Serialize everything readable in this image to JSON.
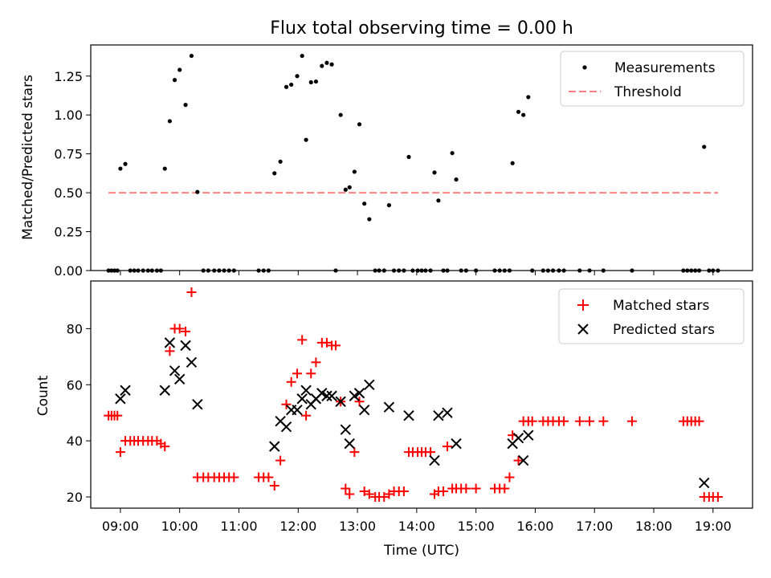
{
  "chart_data": [
    {
      "type": "scatter",
      "title": "Flux total observing time = 0.00 h",
      "ylabel": "Matched/Predicted stars",
      "xlabel": "",
      "xlim": [
        "08:30",
        "19:40"
      ],
      "ylim": [
        0,
        1.45
      ],
      "x_tick_labels": [],
      "y_ticks": [
        0,
        0.25,
        0.5,
        0.75,
        1.0,
        1.25
      ],
      "y_tick_labels": [
        "0.00",
        "0.25",
        "0.50",
        "0.75",
        "1.00",
        "1.25"
      ],
      "legend_position": "top-right",
      "grid": false,
      "series": [
        {
          "name": "Measurements",
          "kind": "scatter",
          "marker": "dot",
          "color": "#000000",
          "points": [
            [
              "08:48",
              0
            ],
            [
              "08:51",
              0
            ],
            [
              "08:54",
              0
            ],
            [
              "08:57",
              0
            ],
            [
              "09:00",
              0.655
            ],
            [
              "09:05",
              0.685
            ],
            [
              "09:10",
              0
            ],
            [
              "09:14",
              0
            ],
            [
              "09:18",
              0
            ],
            [
              "09:23",
              0
            ],
            [
              "09:28",
              0
            ],
            [
              "09:32",
              0
            ],
            [
              "09:37",
              0
            ],
            [
              "09:41",
              0
            ],
            [
              "09:45",
              0.655
            ],
            [
              "09:50",
              0.96
            ],
            [
              "09:55",
              1.225
            ],
            [
              "10:00",
              1.29
            ],
            [
              "10:06",
              1.065
            ],
            [
              "10:12",
              1.38
            ],
            [
              "10:18",
              0.505
            ],
            [
              "10:24",
              0
            ],
            [
              "10:29",
              0
            ],
            [
              "10:35",
              0
            ],
            [
              "10:40",
              0
            ],
            [
              "10:45",
              0
            ],
            [
              "10:50",
              0
            ],
            [
              "10:55",
              0
            ],
            [
              "11:20",
              0
            ],
            [
              "11:25",
              0
            ],
            [
              "11:30",
              0
            ],
            [
              "11:36",
              0.625
            ],
            [
              "11:42",
              0.7
            ],
            [
              "11:48",
              1.18
            ],
            [
              "11:53",
              1.195
            ],
            [
              "11:59",
              1.25
            ],
            [
              "12:04",
              1.38
            ],
            [
              "12:08",
              0.84
            ],
            [
              "12:13",
              1.21
            ],
            [
              "12:18",
              1.215
            ],
            [
              "12:24",
              1.315
            ],
            [
              "12:29",
              1.335
            ],
            [
              "12:34",
              1.325
            ],
            [
              "12:38",
              0
            ],
            [
              "12:43",
              1.0
            ],
            [
              "12:48",
              0.52
            ],
            [
              "12:52",
              0.535
            ],
            [
              "12:57",
              0.635
            ],
            [
              "13:02",
              0.94
            ],
            [
              "13:07",
              0.43
            ],
            [
              "13:12",
              0.33
            ],
            [
              "13:18",
              0
            ],
            [
              "13:22",
              0
            ],
            [
              "13:27",
              0
            ],
            [
              "13:32",
              0.42
            ],
            [
              "13:37",
              0
            ],
            [
              "13:42",
              0
            ],
            [
              "13:47",
              0
            ],
            [
              "13:52",
              0.73
            ],
            [
              "13:56",
              0
            ],
            [
              "14:01",
              0
            ],
            [
              "14:05",
              0
            ],
            [
              "14:09",
              0
            ],
            [
              "14:14",
              0
            ],
            [
              "14:18",
              0.63
            ],
            [
              "14:22",
              0.45
            ],
            [
              "14:27",
              0
            ],
            [
              "14:31",
              0
            ],
            [
              "14:36",
              0.755
            ],
            [
              "14:40",
              0.585
            ],
            [
              "14:45",
              0
            ],
            [
              "14:50",
              0
            ],
            [
              "15:00",
              0
            ],
            [
              "15:19",
              0
            ],
            [
              "15:24",
              0
            ],
            [
              "15:29",
              0
            ],
            [
              "15:34",
              0
            ],
            [
              "15:37",
              0.69
            ],
            [
              "15:43",
              1.02
            ],
            [
              "15:48",
              1.0
            ],
            [
              "15:53",
              1.115
            ],
            [
              "15:57",
              0
            ],
            [
              "16:08",
              0
            ],
            [
              "16:13",
              0
            ],
            [
              "16:18",
              0
            ],
            [
              "16:24",
              0
            ],
            [
              "16:29",
              0
            ],
            [
              "16:45",
              0
            ],
            [
              "16:55",
              0
            ],
            [
              "17:09",
              0
            ],
            [
              "17:38",
              0
            ],
            [
              "18:30",
              0
            ],
            [
              "18:34",
              0
            ],
            [
              "18:38",
              0
            ],
            [
              "18:42",
              0
            ],
            [
              "18:46",
              0
            ],
            [
              "18:51",
              0.795
            ],
            [
              "18:56",
              0
            ],
            [
              "19:00",
              0
            ],
            [
              "19:05",
              0
            ]
          ]
        },
        {
          "name": "Threshold",
          "kind": "line",
          "style": "dashed",
          "color": "#ff8080",
          "points": [
            [
              "08:48",
              0.5
            ],
            [
              "19:05",
              0.5
            ]
          ]
        }
      ]
    },
    {
      "type": "scatter",
      "title": "",
      "ylabel": "Count",
      "xlabel": "Time (UTC)",
      "xlim": [
        "08:30",
        "19:40"
      ],
      "ylim": [
        16.0,
        97.0
      ],
      "x_ticks": [
        "09:00",
        "10:00",
        "11:00",
        "12:00",
        "13:00",
        "14:00",
        "15:00",
        "16:00",
        "17:00",
        "18:00",
        "19:00"
      ],
      "x_tick_labels": [
        "09:00",
        "10:00",
        "11:00",
        "12:00",
        "13:00",
        "14:00",
        "15:00",
        "16:00",
        "17:00",
        "18:00",
        "19:00"
      ],
      "y_ticks": [
        20,
        40,
        60,
        80
      ],
      "y_tick_labels": [
        "20",
        "40",
        "60",
        "80"
      ],
      "legend_position": "top-right",
      "grid": false,
      "series": [
        {
          "name": "Matched stars",
          "kind": "scatter",
          "marker": "plus",
          "color": "#ff0000",
          "points": [
            [
              "08:48",
              49
            ],
            [
              "08:51",
              49
            ],
            [
              "08:54",
              49
            ],
            [
              "08:57",
              49
            ],
            [
              "09:00",
              36
            ],
            [
              "09:05",
              40
            ],
            [
              "09:10",
              40
            ],
            [
              "09:14",
              40
            ],
            [
              "09:18",
              40
            ],
            [
              "09:23",
              40
            ],
            [
              "09:28",
              40
            ],
            [
              "09:32",
              40
            ],
            [
              "09:37",
              40
            ],
            [
              "09:41",
              39
            ],
            [
              "09:45",
              38
            ],
            [
              "09:50",
              72
            ],
            [
              "09:55",
              80
            ],
            [
              "10:00",
              80
            ],
            [
              "10:06",
              79
            ],
            [
              "10:12",
              93
            ],
            [
              "10:18",
              27
            ],
            [
              "10:24",
              27
            ],
            [
              "10:29",
              27
            ],
            [
              "10:35",
              27
            ],
            [
              "10:40",
              27
            ],
            [
              "10:45",
              27
            ],
            [
              "10:50",
              27
            ],
            [
              "10:55",
              27
            ],
            [
              "11:20",
              27
            ],
            [
              "11:25",
              27
            ],
            [
              "11:30",
              27
            ],
            [
              "11:36",
              24
            ],
            [
              "11:42",
              33
            ],
            [
              "11:48",
              53
            ],
            [
              "11:53",
              61
            ],
            [
              "11:59",
              64
            ],
            [
              "12:04",
              76
            ],
            [
              "12:08",
              49
            ],
            [
              "12:13",
              64
            ],
            [
              "12:18",
              68
            ],
            [
              "12:24",
              75
            ],
            [
              "12:29",
              75
            ],
            [
              "12:34",
              74
            ],
            [
              "12:38",
              74
            ],
            [
              "12:43",
              54
            ],
            [
              "12:48",
              23
            ],
            [
              "12:52",
              21
            ],
            [
              "12:57",
              36
            ],
            [
              "13:02",
              54
            ],
            [
              "13:07",
              22
            ],
            [
              "13:12",
              21
            ],
            [
              "13:18",
              20
            ],
            [
              "13:22",
              20
            ],
            [
              "13:27",
              20
            ],
            [
              "13:32",
              21
            ],
            [
              "13:37",
              22
            ],
            [
              "13:42",
              22
            ],
            [
              "13:47",
              22
            ],
            [
              "13:52",
              36
            ],
            [
              "13:56",
              36
            ],
            [
              "14:01",
              36
            ],
            [
              "14:05",
              36
            ],
            [
              "14:09",
              36
            ],
            [
              "14:14",
              36
            ],
            [
              "14:18",
              21
            ],
            [
              "14:22",
              22
            ],
            [
              "14:27",
              22
            ],
            [
              "14:31",
              38
            ],
            [
              "14:36",
              23
            ],
            [
              "14:40",
              23
            ],
            [
              "14:45",
              23
            ],
            [
              "14:50",
              23
            ],
            [
              "15:00",
              23
            ],
            [
              "15:19",
              23
            ],
            [
              "15:24",
              23
            ],
            [
              "15:29",
              23
            ],
            [
              "15:34",
              27
            ],
            [
              "15:37",
              42
            ],
            [
              "15:43",
              33
            ],
            [
              "15:48",
              47
            ],
            [
              "15:53",
              47
            ],
            [
              "15:57",
              47
            ],
            [
              "16:08",
              47
            ],
            [
              "16:13",
              47
            ],
            [
              "16:18",
              47
            ],
            [
              "16:24",
              47
            ],
            [
              "16:29",
              47
            ],
            [
              "16:45",
              47
            ],
            [
              "16:55",
              47
            ],
            [
              "17:09",
              47
            ],
            [
              "17:38",
              47
            ],
            [
              "18:30",
              47
            ],
            [
              "18:34",
              47
            ],
            [
              "18:38",
              47
            ],
            [
              "18:42",
              47
            ],
            [
              "18:46",
              47
            ],
            [
              "18:51",
              20
            ],
            [
              "18:56",
              20
            ],
            [
              "19:00",
              20
            ],
            [
              "19:05",
              20
            ]
          ]
        },
        {
          "name": "Predicted stars",
          "kind": "scatter",
          "marker": "x",
          "color": "#000000",
          "points": [
            [
              "09:00",
              55
            ],
            [
              "09:05",
              58
            ],
            [
              "09:45",
              58
            ],
            [
              "09:50",
              75
            ],
            [
              "09:55",
              65
            ],
            [
              "10:00",
              62
            ],
            [
              "10:06",
              74
            ],
            [
              "10:12",
              68
            ],
            [
              "10:18",
              53
            ],
            [
              "11:36",
              38
            ],
            [
              "11:42",
              47
            ],
            [
              "11:48",
              45
            ],
            [
              "11:53",
              51
            ],
            [
              "11:59",
              51
            ],
            [
              "12:04",
              55
            ],
            [
              "12:08",
              58
            ],
            [
              "12:13",
              53
            ],
            [
              "12:18",
              55
            ],
            [
              "12:24",
              57
            ],
            [
              "12:29",
              56
            ],
            [
              "12:34",
              56
            ],
            [
              "12:43",
              54
            ],
            [
              "12:48",
              44
            ],
            [
              "12:52",
              39
            ],
            [
              "12:57",
              56
            ],
            [
              "13:02",
              57
            ],
            [
              "13:07",
              51
            ],
            [
              "13:12",
              60
            ],
            [
              "13:32",
              52
            ],
            [
              "13:52",
              49
            ],
            [
              "14:18",
              33
            ],
            [
              "14:22",
              49
            ],
            [
              "14:31",
              50
            ],
            [
              "14:40",
              39
            ],
            [
              "15:37",
              39
            ],
            [
              "15:43",
              41
            ],
            [
              "15:48",
              33
            ],
            [
              "15:53",
              42
            ],
            [
              "18:51",
              25
            ]
          ]
        }
      ]
    }
  ]
}
